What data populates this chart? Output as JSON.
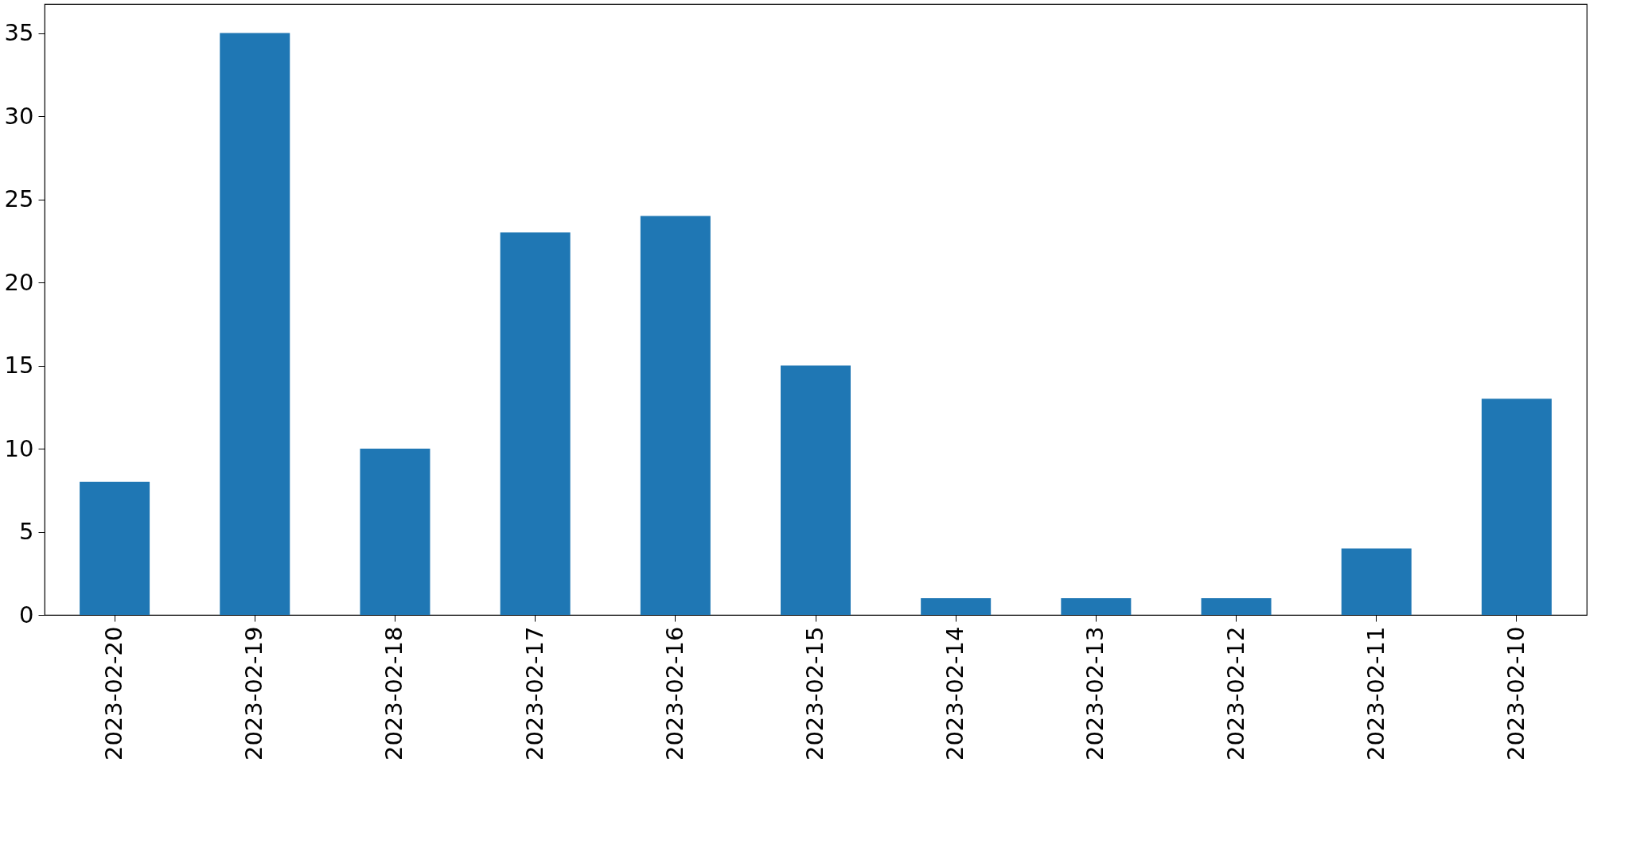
{
  "chart_data": {
    "type": "bar",
    "categories": [
      "2023-02-20",
      "2023-02-19",
      "2023-02-18",
      "2023-02-17",
      "2023-02-16",
      "2023-02-15",
      "2023-02-14",
      "2023-02-13",
      "2023-02-12",
      "2023-02-11",
      "2023-02-10"
    ],
    "values": [
      8,
      35,
      10,
      23,
      24,
      15,
      1,
      1,
      1,
      4,
      13
    ],
    "color": "#1f77b4",
    "ylim": [
      0,
      36.75
    ],
    "yticks": [
      0,
      5,
      10,
      15,
      20,
      25,
      30,
      35
    ]
  }
}
